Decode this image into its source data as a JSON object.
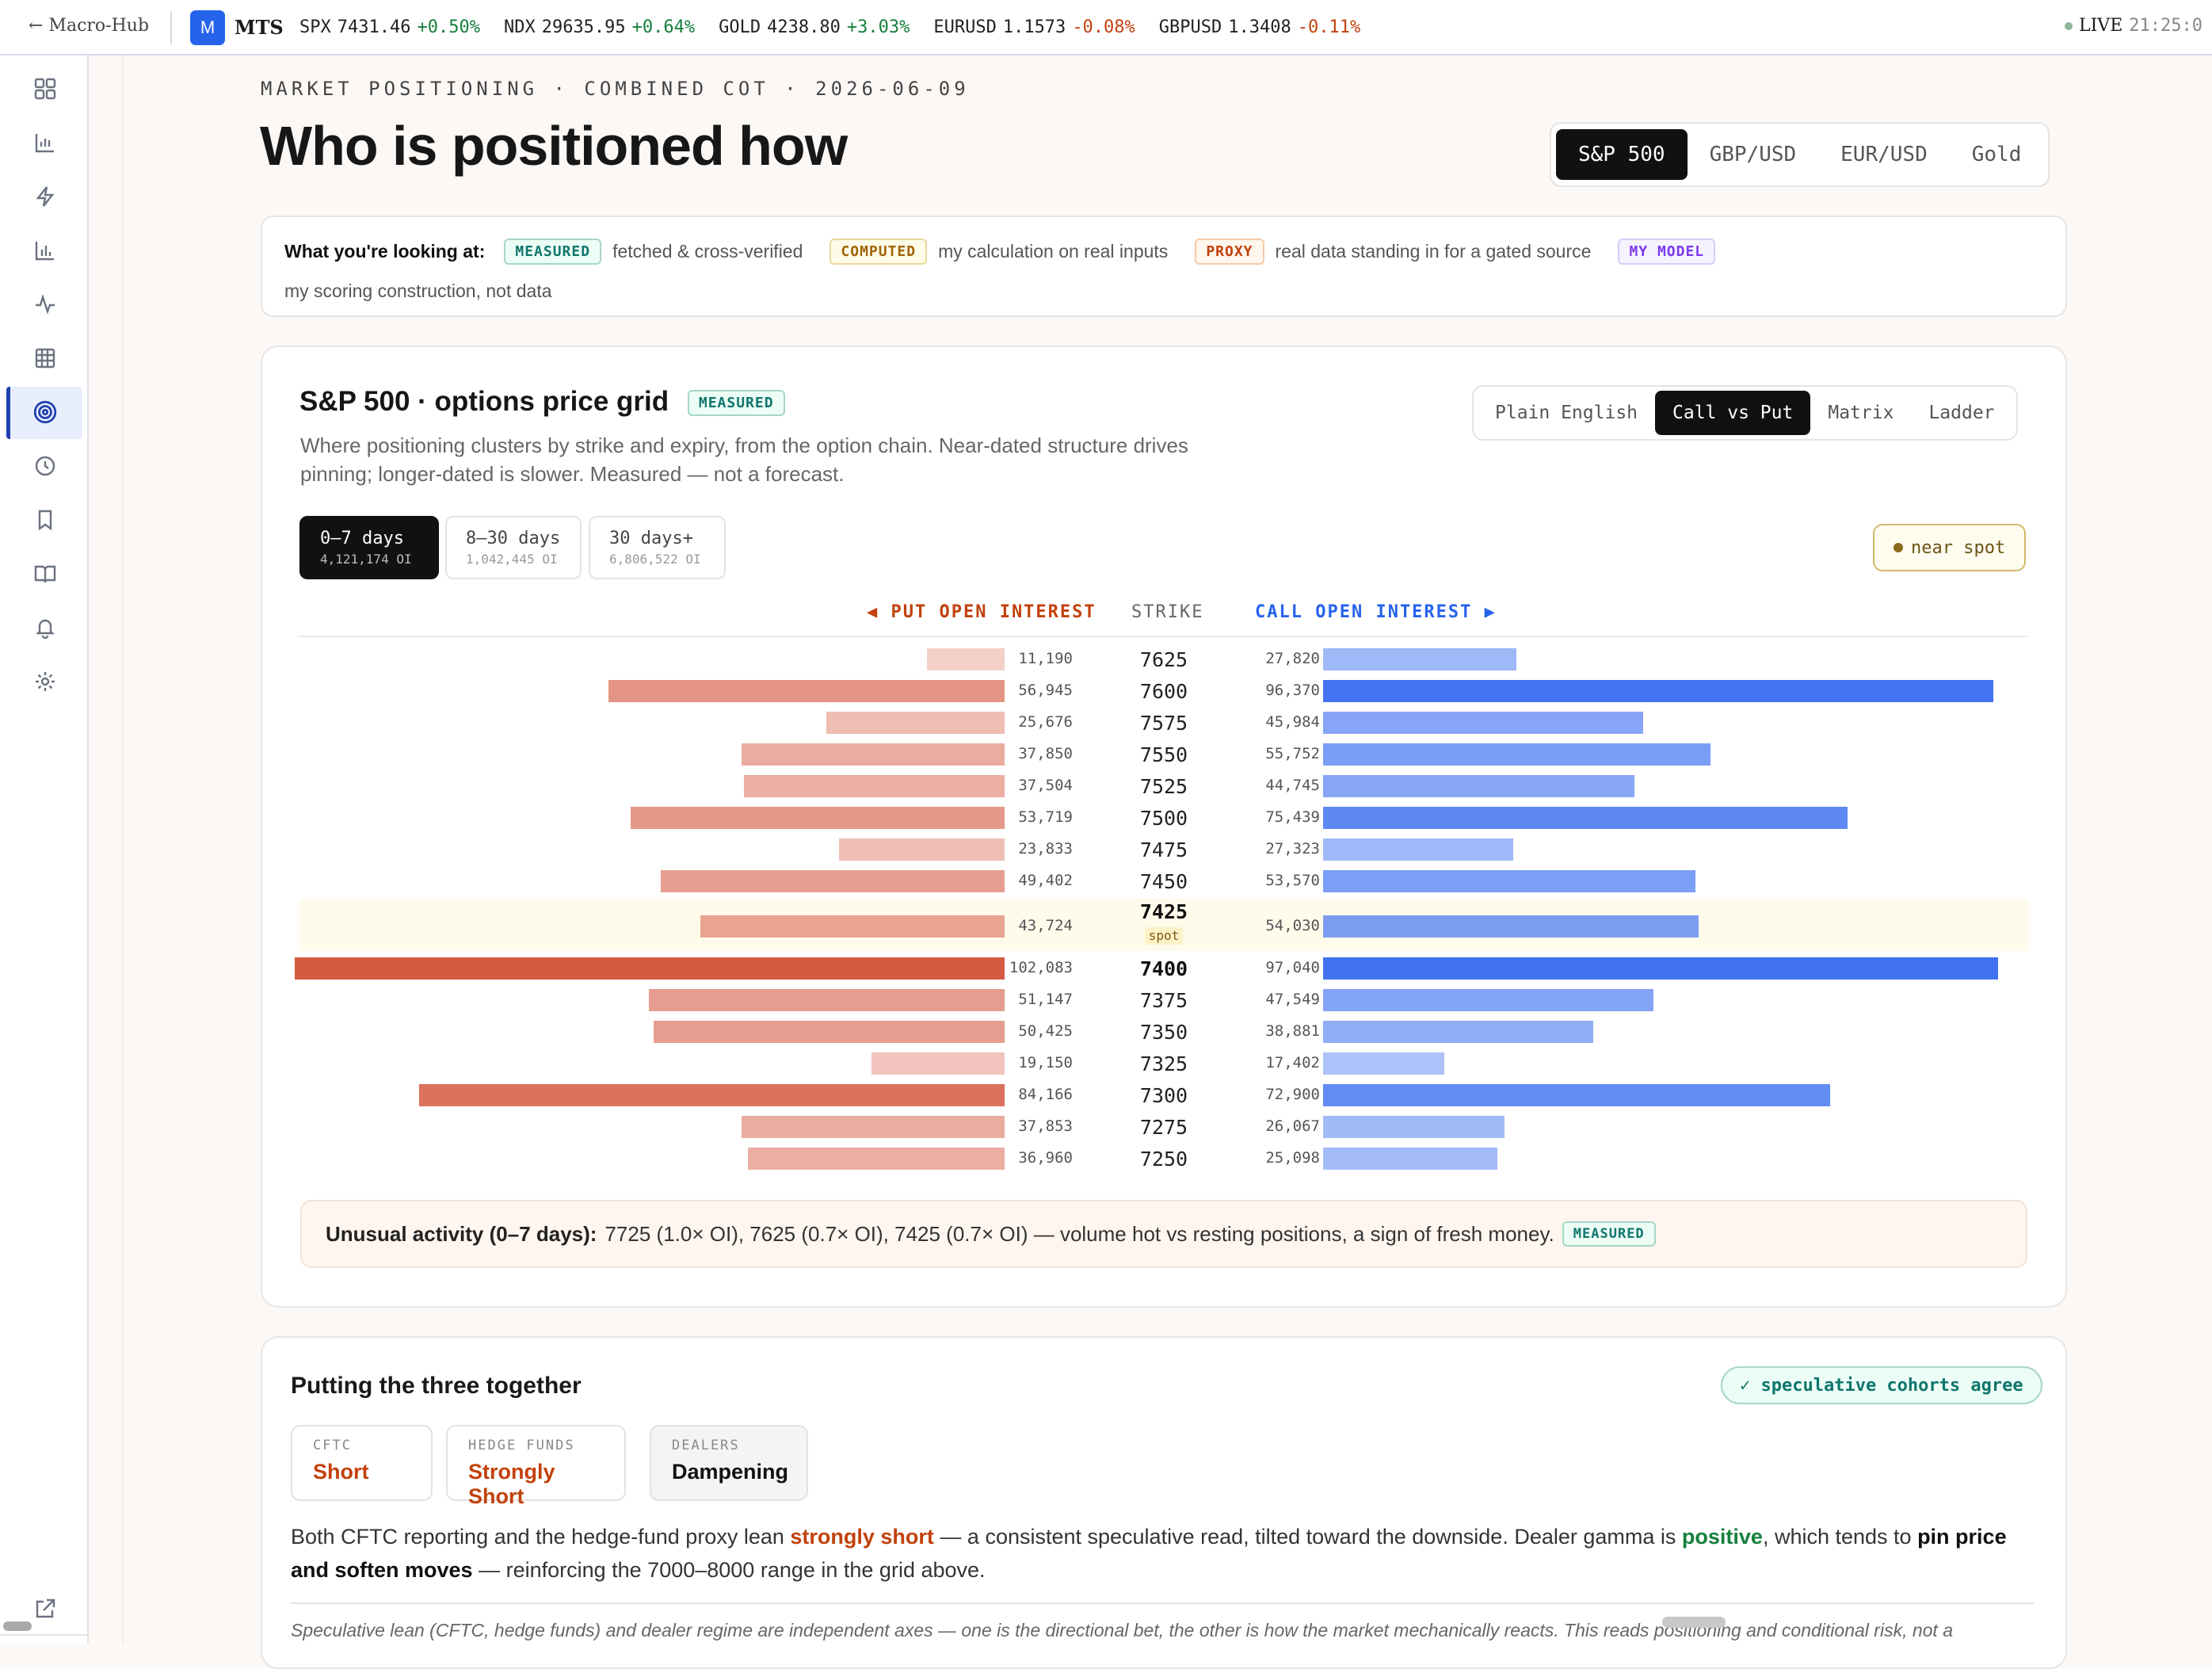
{
  "topbar": {
    "back_label": "← Macro-Hub",
    "logo_letter": "M",
    "app_name": "MTS",
    "tickers": [
      {
        "name": "SPX",
        "value": "7431.46",
        "change": "+0.50%",
        "dir": "up"
      },
      {
        "name": "NDX",
        "value": "29635.95",
        "change": "+0.64%",
        "dir": "up"
      },
      {
        "name": "GOLD",
        "value": "4238.80",
        "change": "+3.03%",
        "dir": "up"
      },
      {
        "name": "EURUSD",
        "value": "1.1573",
        "change": "-0.08%",
        "dir": "down"
      },
      {
        "name": "GBPUSD",
        "value": "1.3408",
        "change": "-0.11%",
        "dir": "down"
      }
    ],
    "live_label": "LIVE",
    "time": "21:25:0"
  },
  "sidebar": {
    "icons": [
      "dashboard-icon",
      "chart-icon",
      "bolt-icon",
      "bar-chart-icon",
      "pulse-icon",
      "grid-icon",
      "target-icon",
      "clock-icon",
      "bookmark-icon",
      "book-icon",
      "bell-icon",
      "gear-icon"
    ],
    "active_index": 6,
    "bottom_icon": "external-link-icon"
  },
  "header": {
    "kicker": "MARKET POSITIONING · COMBINED COT · 2026-06-09",
    "title": "Who is positioned how",
    "asset_tabs": [
      "S&P 500",
      "GBP/USD",
      "EUR/USD",
      "Gold"
    ],
    "active_asset": 0
  },
  "legend": {
    "intro": "What you're looking at:",
    "items": [
      {
        "tag": "MEASURED",
        "desc": "fetched & cross-verified"
      },
      {
        "tag": "COMPUTED",
        "desc": "my calculation on real inputs"
      },
      {
        "tag": "PROXY",
        "desc": "real data standing in for a gated source"
      },
      {
        "tag": "MY MODEL",
        "desc": "my scoring construction, not data"
      }
    ]
  },
  "grid_card": {
    "title": "S&P 500 · options price grid",
    "badge": "MEASURED",
    "subtitle": "Where positioning clusters by strike and expiry, from the option chain. Near-dated structure drives pinning; longer-dated is slower. Measured — not a forecast.",
    "view_tabs": [
      "Plain English",
      "Call vs Put",
      "Matrix",
      "Ladder"
    ],
    "active_view": 1,
    "expiry_tabs": [
      {
        "label": "0–7 days",
        "oi": "4,121,174 OI"
      },
      {
        "label": "8–30 days",
        "oi": "1,042,445 OI"
      },
      {
        "label": "30 days+",
        "oi": "6,806,522 OI"
      }
    ],
    "active_expiry": 0,
    "near_spot": "near spot",
    "put_header": "◀ PUT OPEN INTEREST",
    "strike_header": "STRIKE",
    "call_header": "CALL OPEN INTEREST ▶",
    "spot_label": "spot",
    "unusual_label": "Unusual activity (0–7 days):",
    "unusual_text": "7725 (1.0× OI), 7625 (0.7× OI), 7425 (0.7× OI) — volume hot vs resting positions, a sign of fresh money.",
    "unusual_badge": "MEASURED"
  },
  "chart_data": {
    "type": "bar",
    "title": "S&P 500 · options price grid",
    "categories": [
      "7625",
      "7600",
      "7575",
      "7550",
      "7525",
      "7500",
      "7475",
      "7450",
      "7425",
      "7400",
      "7375",
      "7350",
      "7325",
      "7300",
      "7275",
      "7250"
    ],
    "series": [
      {
        "name": "PUT OPEN INTEREST",
        "values": [
          11190,
          56945,
          25676,
          37850,
          37504,
          53719,
          23833,
          49402,
          43724,
          102083,
          51147,
          50425,
          19150,
          84166,
          37853,
          36960
        ],
        "labels": [
          "11,190",
          "56,945",
          "25,676",
          "37,850",
          "37,504",
          "53,719",
          "23,833",
          "49,402",
          "43,724",
          "102,083",
          "51,147",
          "50,425",
          "19,150",
          "84,166",
          "37,853",
          "36,960"
        ]
      },
      {
        "name": "CALL OPEN INTEREST",
        "values": [
          27820,
          96370,
          45984,
          55752,
          44745,
          75439,
          27323,
          53570,
          54030,
          97040,
          47549,
          38881,
          17402,
          72900,
          26067,
          25098
        ],
        "labels": [
          "27,820",
          "96,370",
          "45,984",
          "55,752",
          "44,745",
          "75,439",
          "27,323",
          "53,570",
          "54,030",
          "97,040",
          "47,549",
          "38,881",
          "17,402",
          "72,900",
          "26,067",
          "25,098"
        ]
      }
    ],
    "spot_strike": "7425",
    "bold_strikes": [
      "7425",
      "7400"
    ],
    "colors": {
      "put": "#d65a42",
      "call": "#3b6ef0"
    }
  },
  "summary": {
    "title": "Putting the three together",
    "agree_badge": "✓ speculative cohorts agree",
    "chips": [
      {
        "key": "CFTC",
        "value": "Short",
        "color": "#c2410c"
      },
      {
        "key": "HEDGE FUNDS",
        "value": "Strongly Short",
        "color": "#c2410c"
      },
      {
        "key": "DEALERS",
        "value": "Dampening",
        "color": "#111111"
      }
    ],
    "p1": "Both CFTC reporting and the hedge-fund proxy lean",
    "p_strong": "strongly short",
    "p2": "— a consistent speculative read, tilted toward the downside. Dealer gamma is",
    "p_pos": "positive",
    "p3": ", which tends to",
    "p_pin": "pin price and soften moves",
    "p4": "— reinforcing the 7000–8000 range in the grid above.",
    "footnote": "Speculative lean (CFTC, hedge funds) and dealer regime are independent axes — one is the directional bet, the other is how the market mechanically reacts. This reads positioning and conditional risk, not a"
  }
}
